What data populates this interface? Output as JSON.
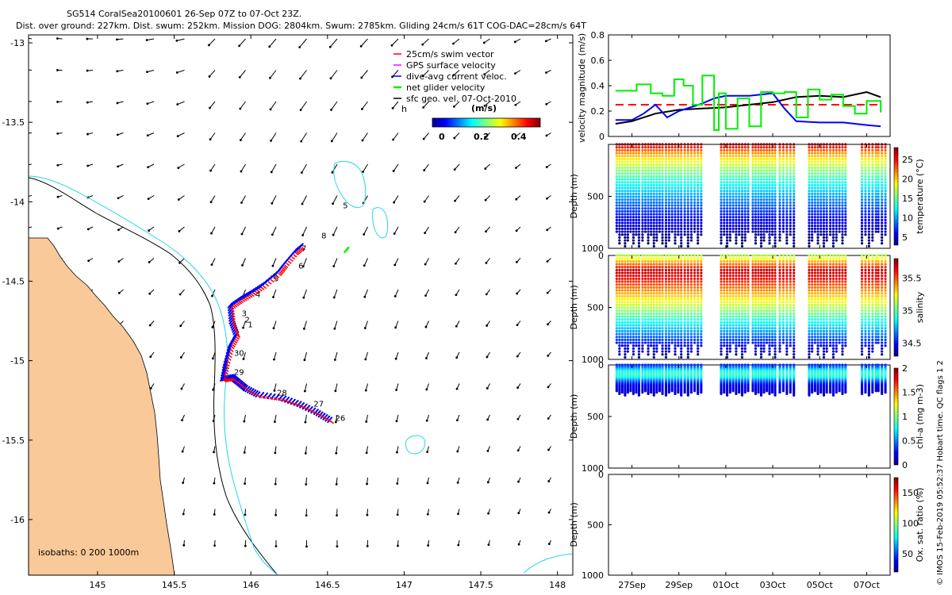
{
  "header": {
    "title": "SG514 CoralSea20100601 26-Sep 07Z to 07-Oct 23Z.",
    "summary": "Dist. over ground: 227km. Dist. swum: 252km. Mission DOG: 2804km. Swum: 2785km. Gliding 24cm/s 61T COG-DAC=28cm/s 64T"
  },
  "footer": {
    "credit": "© IMOS 15-Feb-2019 05:52:37 Hobart time. QC flags 1  2"
  },
  "colors": {
    "land": "#f9c999",
    "coast": "#000000",
    "isobath": "#22d7e6",
    "swim": "#ff0000",
    "gps": "#ff00ff",
    "dac": "#0000ff",
    "net": "#00ee00",
    "geo": "#000000"
  },
  "chart_data": [
    {
      "id": "map",
      "type": "scatter",
      "title": "",
      "xlabel": "",
      "ylabel": "",
      "xlim": [
        144.55,
        148.1
      ],
      "ylim": [
        -16.35,
        -12.95
      ],
      "x_ticks": [
        "145",
        "145.5",
        "146",
        "146.5",
        "147",
        "147.5",
        "148"
      ],
      "y_ticks": [
        "-13",
        "-13.5",
        "-14",
        "-14.5",
        "-15",
        "-15.5",
        "-16"
      ],
      "legend": [
        "25cm/s swim vector",
        "GPS surface velocity",
        "dive-avg current veloc.",
        "net glider velocity",
        "sfc geo. vel. 07-Oct-2010"
      ],
      "colorbar": {
        "label": "(m/s)",
        "ticks": [
          "0",
          "0.2",
          "0.4"
        ],
        "range": [
          0,
          0.5
        ]
      },
      "isobath_note": "isobaths: 0   200  1000m",
      "h_marker": "h",
      "track": [
        {
          "lon": 146.52,
          "lat": -15.38
        },
        {
          "lon": 146.43,
          "lat": -15.33
        },
        {
          "lon": 146.32,
          "lat": -15.28
        },
        {
          "lon": 146.2,
          "lat": -15.24
        },
        {
          "lon": 146.05,
          "lat": -15.22
        },
        {
          "lon": 145.97,
          "lat": -15.18
        },
        {
          "lon": 145.92,
          "lat": -15.14
        },
        {
          "lon": 145.88,
          "lat": -15.11
        },
        {
          "lon": 145.82,
          "lat": -15.12
        },
        {
          "lon": 145.84,
          "lat": -15.02
        },
        {
          "lon": 145.87,
          "lat": -14.91
        },
        {
          "lon": 145.91,
          "lat": -14.84
        },
        {
          "lon": 145.88,
          "lat": -14.76
        },
        {
          "lon": 145.87,
          "lat": -14.66
        },
        {
          "lon": 145.93,
          "lat": -14.62
        },
        {
          "lon": 146.0,
          "lat": -14.58
        },
        {
          "lon": 146.08,
          "lat": -14.53
        },
        {
          "lon": 146.18,
          "lat": -14.45
        },
        {
          "lon": 146.22,
          "lat": -14.4
        },
        {
          "lon": 146.29,
          "lat": -14.32
        },
        {
          "lon": 146.34,
          "lat": -14.28
        }
      ],
      "dive_labels": [
        {
          "label": "26",
          "lon": 146.55,
          "lat": -15.38
        },
        {
          "label": "27",
          "lon": 146.41,
          "lat": -15.29
        },
        {
          "label": "28",
          "lon": 146.17,
          "lat": -15.22
        },
        {
          "label": "29",
          "lon": 145.89,
          "lat": -15.09
        },
        {
          "label": "30",
          "lon": 145.89,
          "lat": -14.97
        },
        {
          "label": "1",
          "lon": 145.98,
          "lat": -14.79
        },
        {
          "label": "2",
          "lon": 145.96,
          "lat": -14.76
        },
        {
          "label": "3",
          "lon": 145.94,
          "lat": -14.72
        },
        {
          "label": "4",
          "lon": 146.03,
          "lat": -14.6
        },
        {
          "label": "5",
          "lon": 146.15,
          "lat": -14.5
        },
        {
          "label": "6",
          "lon": 146.31,
          "lat": -14.42
        },
        {
          "label": "7",
          "lon": 146.33,
          "lat": -14.31
        },
        {
          "label": "8",
          "lon": 146.46,
          "lat": -14.23
        },
        {
          "label": "5",
          "lon": 146.6,
          "lat": -14.04
        }
      ]
    },
    {
      "id": "velocity",
      "type": "line",
      "title": "",
      "xlabel": "",
      "ylabel": "velocity magnitude (m/s)",
      "ylim": [
        0,
        0.8
      ],
      "y_ticks": [
        "0",
        "0.2",
        "0.4",
        "0.6",
        "0.8"
      ],
      "xlim": [
        0,
        12
      ],
      "series": [
        {
          "name": "GPS surface velocity (mean)",
          "style": "dashed",
          "color": "#ff0000",
          "x": [
            0.3,
            11.6
          ],
          "y": [
            0.25,
            0.25
          ]
        },
        {
          "name": "sfc geo. vel.",
          "color": "#000000",
          "x": [
            0.3,
            1,
            2,
            3,
            4,
            5,
            6,
            7,
            8,
            9,
            10,
            11,
            11.6
          ],
          "y": [
            0.1,
            0.12,
            0.18,
            0.21,
            0.22,
            0.23,
            0.25,
            0.27,
            0.31,
            0.32,
            0.31,
            0.35,
            0.31
          ]
        },
        {
          "name": "dive-avg current veloc.",
          "color": "#0000ff",
          "x": [
            0.3,
            1,
            1.5,
            2,
            2.5,
            3,
            4,
            4.5,
            5,
            6,
            7,
            7.5,
            8,
            9,
            10,
            11,
            11.6
          ],
          "y": [
            0.13,
            0.13,
            0.18,
            0.25,
            0.15,
            0.2,
            0.26,
            0.3,
            0.32,
            0.32,
            0.34,
            0.22,
            0.12,
            0.11,
            0.11,
            0.09,
            0.08
          ]
        },
        {
          "name": "net glider velocity",
          "color": "#00ee00",
          "x": [
            0.3,
            0.8,
            1.2,
            1.8,
            2.3,
            2.8,
            3.2,
            3.6,
            4,
            4.5,
            4.7,
            5,
            5.5,
            6,
            6.5,
            7,
            7.5,
            8,
            8.5,
            9,
            9.5,
            10,
            10.5,
            11,
            11.6
          ],
          "y": [
            0.36,
            0.36,
            0.41,
            0.34,
            0.32,
            0.45,
            0.4,
            0.25,
            0.48,
            0.05,
            0.34,
            0.06,
            0.3,
            0.08,
            0.35,
            0.34,
            0.35,
            0.15,
            0.37,
            0.29,
            0.33,
            0.24,
            0.18,
            0.28,
            0.19
          ]
        }
      ]
    },
    {
      "id": "temperature",
      "type": "scatter",
      "ylabel": "Depth (m)",
      "ylim": [
        1000,
        0
      ],
      "y_ticks": [
        "500",
        "1000"
      ],
      "colorbar": {
        "label": "temperature (°C)",
        "ticks": [
          "5",
          "10",
          "15",
          "20",
          "25"
        ],
        "range": [
          3,
          28
        ]
      },
      "profiles": {
        "max_depth": 1000,
        "surface_value": 28,
        "deep_value": 4
      }
    },
    {
      "id": "salinity",
      "type": "scatter",
      "ylabel": "Depth (m)",
      "ylim": [
        1000,
        0
      ],
      "y_ticks": [
        "0",
        "500",
        "1000"
      ],
      "colorbar": {
        "label": "salinity",
        "ticks": [
          "34.5",
          "35",
          "35.5"
        ],
        "range": [
          34.3,
          35.8
        ]
      },
      "profiles": {
        "max_depth": 1000,
        "surface_value": 35.1,
        "mid_value": 35.7,
        "deep_value": 34.4
      }
    },
    {
      "id": "chla",
      "type": "scatter",
      "ylabel": "Depth (m)",
      "ylim": [
        1000,
        0
      ],
      "y_ticks": [
        "0",
        "500",
        "1000"
      ],
      "colorbar": {
        "label": "chl-a (mg m-3)",
        "ticks": [
          "0",
          "0.5",
          "1",
          "1.5",
          "2"
        ],
        "range": [
          0,
          2
        ]
      },
      "profiles": {
        "max_depth": 300,
        "surface_value": 0.1,
        "peak_value": 0.9
      }
    },
    {
      "id": "oxygen",
      "type": "scatter",
      "ylabel": "Depth (m)",
      "ylim": [
        1000,
        0
      ],
      "y_ticks": [
        "0",
        "500",
        "1000"
      ],
      "colorbar": {
        "label": "Ox. sat. ratio (%)",
        "ticks": [
          "50",
          "100",
          "150"
        ],
        "range": [
          20,
          175
        ]
      },
      "profiles": null
    },
    {
      "id": "time_axis",
      "type": "table",
      "x_ticks": [
        "27Sep",
        "29Sep",
        "01Oct",
        "03Oct",
        "05Oct",
        "07Oct"
      ],
      "xlim": [
        0,
        12
      ],
      "dive_groups": [
        {
          "x0": 0.35,
          "x1": 1.3
        },
        {
          "x0": 1.45,
          "x1": 2.3
        },
        {
          "x0": 2.45,
          "x1": 3.1
        },
        {
          "x0": 3.25,
          "x1": 3.95
        },
        {
          "x0": 4.8,
          "x1": 5.95
        },
        {
          "x0": 6.15,
          "x1": 7.1
        },
        {
          "x0": 7.3,
          "x1": 7.9
        },
        {
          "x0": 8.55,
          "x1": 9.3
        },
        {
          "x0": 9.45,
          "x1": 10.1
        },
        {
          "x0": 10.8,
          "x1": 11.4
        },
        {
          "x0": 11.5,
          "x1": 11.8
        }
      ]
    }
  ]
}
